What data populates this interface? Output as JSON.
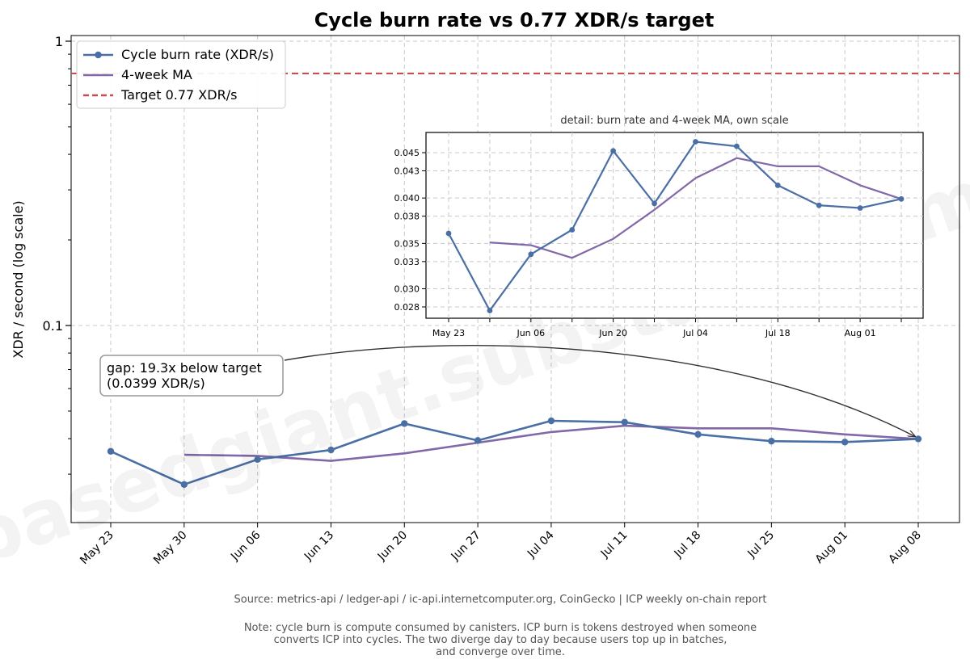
{
  "title": "Cycle burn rate vs 0.77 XDR/s target",
  "watermark": "basedgiant.substack.com",
  "source": "Source: metrics-api / ledger-api / ic-api.internetcomputer.org, CoinGecko  |  ICP weekly on-chain report",
  "note_lines": [
    "Note: cycle burn is compute consumed by canisters. ICP burn is tokens destroyed when someone",
    "converts ICP into cycles. The two diverge day to day because users top up in batches,",
    "and converge over time."
  ],
  "annotation": {
    "lines": [
      "gap: 19.3x below target",
      "(0.0399 XDR/s)"
    ]
  },
  "chart_data": [
    {
      "type": "line",
      "title": "Cycle burn rate vs 0.77 XDR/s target",
      "ylabel": "XDR / second (log scale)",
      "yscale": "log",
      "ylim": [
        0.02,
        1.05
      ],
      "yticks": [
        0.1,
        1
      ],
      "ytick_labels": [
        "0.1",
        "1"
      ],
      "grid": true,
      "legend_position": "top-left",
      "categories": [
        "May 23",
        "May 30",
        "Jun 06",
        "Jun 13",
        "Jun 20",
        "Jun 27",
        "Jul 04",
        "Jul 11",
        "Jul 18",
        "Jul 25",
        "Aug 01",
        "Aug 08"
      ],
      "series": [
        {
          "name": "Cycle burn rate (XDR/s)",
          "color": "#4a6fa5",
          "marker": "circle",
          "values": [
            0.0361,
            0.0276,
            0.0338,
            0.0365,
            0.0452,
            0.0394,
            0.0462,
            0.0457,
            0.0414,
            0.0392,
            0.0389,
            0.0399
          ]
        },
        {
          "name": "4-week MA",
          "color": "#8268a8",
          "values": [
            null,
            0.0351,
            0.0348,
            0.0334,
            0.0355,
            0.0387,
            0.0422,
            0.0444,
            0.0435,
            0.0435,
            0.0414,
            0.0399
          ]
        },
        {
          "name": "Target 0.77 XDR/s",
          "color": "#c44e52",
          "style": "dashed",
          "constant": 0.77
        }
      ]
    },
    {
      "type": "line",
      "title": "detail: burn rate and 4-week MA, own scale",
      "yscale": "linear",
      "ylim": [
        0.0265,
        0.047
      ],
      "yticks": [
        0.028,
        0.03,
        0.033,
        0.035,
        0.038,
        0.04,
        0.043,
        0.045
      ],
      "ytick_labels": [
        "0.028",
        "0.030",
        "0.033",
        "0.035",
        "0.038",
        "0.040",
        "0.043",
        "0.045"
      ],
      "grid": true,
      "categories": [
        "May 23",
        "May 30",
        "Jun 06",
        "Jun 13",
        "Jun 20",
        "Jun 27",
        "Jul 04",
        "Jul 11",
        "Jul 18",
        "Jul 25",
        "Aug 01",
        "Aug 08"
      ],
      "xtick_labels": [
        "May 23",
        "",
        "Jun 06",
        "",
        "Jun 20",
        "",
        "Jul 04",
        "",
        "Jul 18",
        "",
        "Aug 01",
        ""
      ],
      "series": [
        {
          "name": "Cycle burn rate (XDR/s)",
          "color": "#4a6fa5",
          "marker": "circle",
          "values": [
            0.0361,
            0.0276,
            0.0338,
            0.0365,
            0.0452,
            0.0394,
            0.0462,
            0.0457,
            0.0414,
            0.0392,
            0.0389,
            0.0399
          ]
        },
        {
          "name": "4-week MA",
          "color": "#8268a8",
          "values": [
            null,
            0.0351,
            0.0348,
            0.0334,
            0.0355,
            0.0387,
            0.0422,
            0.0444,
            0.0435,
            0.0435,
            0.0414,
            0.0399
          ]
        }
      ]
    }
  ]
}
